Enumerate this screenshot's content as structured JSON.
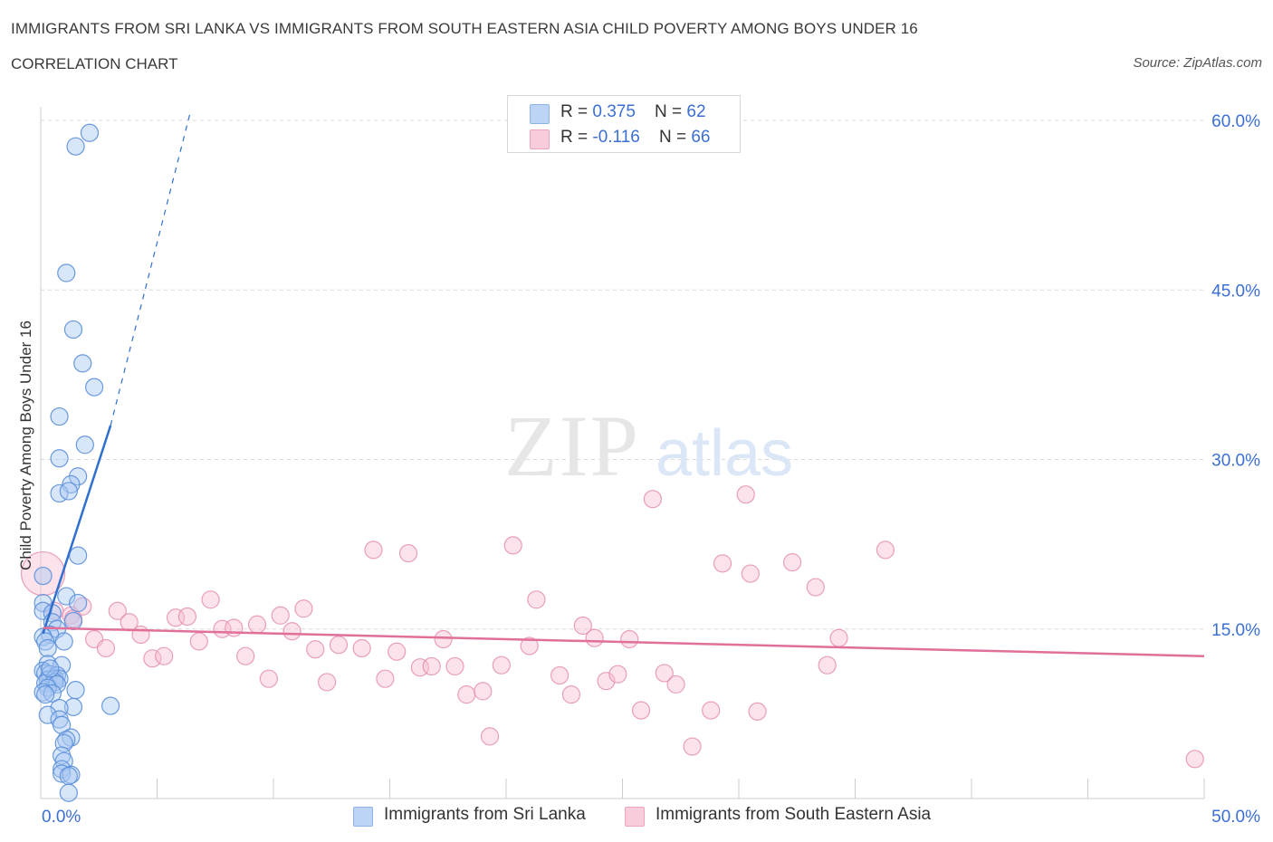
{
  "title": "IMMIGRANTS FROM SRI LANKA VS IMMIGRANTS FROM SOUTH EASTERN ASIA CHILD POVERTY AMONG BOYS UNDER 16",
  "subtitle": "CORRELATION CHART",
  "source": "Source: ZipAtlas.com",
  "watermark": {
    "zip": "ZIP",
    "atlas": "atlas"
  },
  "legend": {
    "series1": {
      "r_label": "R = ",
      "r_value": "0.375",
      "n_label": "N = ",
      "n_value": "62"
    },
    "series2": {
      "r_label": "R = ",
      "r_value": "-0.116",
      "n_label": "N = ",
      "n_value": "66"
    }
  },
  "colors": {
    "blue_fill": "#a9c7f2",
    "blue_stroke": "#5b8fd9",
    "blue_line": "#2f6fd0",
    "pink_fill": "#f6bfd2",
    "pink_stroke": "#e58fb0",
    "pink_line": "#e0709a",
    "axis_text": "#3b6fd4",
    "grid": "#d9d9d9"
  },
  "chart_data": {
    "type": "scatter",
    "ylabel": "Child Poverty Among Boys Under 16",
    "xlabel": "",
    "xlim": [
      0,
      50
    ],
    "ylim": [
      0,
      60
    ],
    "x_tick_labels": [
      "0.0%",
      "50.0%"
    ],
    "y_ticks": [
      15,
      30,
      45,
      60
    ],
    "y_tick_labels": [
      "15.0%",
      "30.0%",
      "45.0%",
      "60.0%"
    ],
    "legend_position": "top-center",
    "series": [
      {
        "name": "Immigrants from Sri Lanka",
        "color": "blue",
        "R": 0.375,
        "N": 62,
        "trend": {
          "solid": [
            [
              0.1,
              14.6
            ],
            [
              3.0,
              33.0
            ]
          ],
          "dashed": [
            [
              3.0,
              33.0
            ],
            [
              6.4,
              60.5
            ]
          ]
        },
        "points": [
          [
            2.1,
            58.9
          ],
          [
            1.5,
            57.7
          ],
          [
            1.1,
            46.5
          ],
          [
            1.4,
            41.5
          ],
          [
            1.8,
            38.5
          ],
          [
            2.3,
            36.4
          ],
          [
            0.8,
            33.8
          ],
          [
            1.9,
            31.3
          ],
          [
            0.8,
            30.1
          ],
          [
            1.6,
            28.5
          ],
          [
            1.3,
            27.8
          ],
          [
            0.8,
            27.0
          ],
          [
            1.2,
            27.2
          ],
          [
            1.6,
            21.5
          ],
          [
            0.1,
            19.7
          ],
          [
            0.1,
            17.3
          ],
          [
            1.1,
            17.9
          ],
          [
            1.6,
            17.3
          ],
          [
            0.1,
            16.6
          ],
          [
            0.5,
            16.4
          ],
          [
            0.5,
            15.6
          ],
          [
            1.4,
            15.7
          ],
          [
            0.7,
            15.0
          ],
          [
            0.4,
            14.5
          ],
          [
            0.1,
            14.3
          ],
          [
            0.2,
            13.9
          ],
          [
            1.0,
            13.9
          ],
          [
            0.3,
            13.3
          ],
          [
            0.3,
            11.9
          ],
          [
            0.9,
            11.8
          ],
          [
            0.1,
            11.3
          ],
          [
            0.2,
            11.1
          ],
          [
            0.4,
            11.0
          ],
          [
            0.7,
            10.9
          ],
          [
            0.3,
            10.5
          ],
          [
            0.6,
            10.6
          ],
          [
            0.8,
            10.6
          ],
          [
            0.6,
            10.3
          ],
          [
            0.2,
            10.2
          ],
          [
            0.7,
            10.1
          ],
          [
            0.3,
            9.8
          ],
          [
            1.5,
            9.6
          ],
          [
            0.1,
            9.4
          ],
          [
            0.5,
            9.3
          ],
          [
            0.2,
            9.2
          ],
          [
            1.4,
            8.1
          ],
          [
            3.0,
            8.2
          ],
          [
            0.8,
            8.0
          ],
          [
            0.3,
            7.4
          ],
          [
            0.8,
            7.0
          ],
          [
            0.9,
            6.5
          ],
          [
            1.3,
            5.4
          ],
          [
            1.1,
            5.2
          ],
          [
            1.0,
            4.9
          ],
          [
            0.9,
            3.8
          ],
          [
            1.0,
            3.3
          ],
          [
            0.9,
            2.6
          ],
          [
            0.9,
            2.2
          ],
          [
            1.3,
            2.1
          ],
          [
            1.2,
            2.0
          ],
          [
            1.2,
            0.5
          ],
          [
            0.4,
            11.5
          ]
        ]
      },
      {
        "name": "Immigrants from South Eastern Asia",
        "color": "pink",
        "R": -0.116,
        "N": 66,
        "trend": {
          "solid": [
            [
              0.1,
              15.1
            ],
            [
              50.0,
              12.6
            ]
          ]
        },
        "points": [
          [
            0.1,
            19.9,
            "large"
          ],
          [
            0.6,
            16.6
          ],
          [
            1.3,
            16.2
          ],
          [
            1.8,
            17.0
          ],
          [
            1.4,
            15.9
          ],
          [
            3.3,
            16.6
          ],
          [
            3.8,
            15.6
          ],
          [
            2.3,
            14.1
          ],
          [
            2.8,
            13.3
          ],
          [
            4.3,
            14.5
          ],
          [
            4.8,
            12.4
          ],
          [
            5.3,
            12.6
          ],
          [
            5.8,
            16.0
          ],
          [
            6.3,
            16.1
          ],
          [
            6.8,
            13.9
          ],
          [
            7.3,
            17.6
          ],
          [
            7.8,
            15.0
          ],
          [
            8.3,
            15.1
          ],
          [
            8.8,
            12.6
          ],
          [
            9.3,
            15.4
          ],
          [
            9.8,
            10.6
          ],
          [
            10.3,
            16.2
          ],
          [
            10.8,
            14.8
          ],
          [
            11.3,
            16.8
          ],
          [
            11.8,
            13.2
          ],
          [
            12.3,
            10.3
          ],
          [
            12.8,
            13.6
          ],
          [
            13.8,
            13.3
          ],
          [
            14.3,
            22.0
          ],
          [
            14.8,
            10.6
          ],
          [
            15.3,
            13.0
          ],
          [
            15.8,
            21.7
          ],
          [
            16.3,
            11.6
          ],
          [
            16.8,
            11.7
          ],
          [
            17.3,
            14.1
          ],
          [
            17.8,
            11.7
          ],
          [
            18.3,
            9.2
          ],
          [
            19.0,
            9.5
          ],
          [
            19.3,
            5.5
          ],
          [
            19.8,
            11.8
          ],
          [
            20.3,
            22.4
          ],
          [
            21.0,
            13.5
          ],
          [
            21.3,
            17.6
          ],
          [
            22.3,
            10.9
          ],
          [
            22.8,
            9.2
          ],
          [
            23.3,
            15.3
          ],
          [
            23.8,
            14.2
          ],
          [
            24.3,
            10.4
          ],
          [
            24.8,
            11.0
          ],
          [
            25.3,
            14.1
          ],
          [
            25.8,
            7.8
          ],
          [
            26.3,
            26.5
          ],
          [
            26.8,
            11.1
          ],
          [
            27.3,
            10.1
          ],
          [
            28.0,
            4.6
          ],
          [
            28.8,
            7.8
          ],
          [
            29.3,
            20.8
          ],
          [
            30.3,
            26.9
          ],
          [
            30.8,
            7.7
          ],
          [
            30.5,
            19.9
          ],
          [
            32.3,
            20.9
          ],
          [
            33.3,
            18.7
          ],
          [
            33.8,
            11.8
          ],
          [
            34.3,
            14.2
          ],
          [
            36.3,
            22.0
          ],
          [
            49.6,
            3.5
          ]
        ]
      }
    ]
  },
  "bottom_legend": [
    "Immigrants from Sri Lanka",
    "Immigrants from South Eastern Asia"
  ]
}
